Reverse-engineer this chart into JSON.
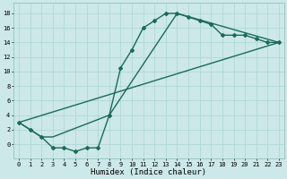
{
  "title": "",
  "xlabel": "Humidex (Indice chaleur)",
  "ylabel": "",
  "bg_color": "#cce8e8",
  "grid_color": "#aad4d4",
  "line_color": "#1a6b5a",
  "curve1_x": [
    0,
    1,
    2,
    3,
    4,
    5,
    6,
    7,
    8,
    9,
    10,
    11,
    12,
    13,
    14,
    15,
    16,
    17,
    18,
    19,
    20,
    21,
    22,
    23
  ],
  "curve1_y": [
    3,
    2,
    1,
    -0.5,
    -0.5,
    -1,
    -0.5,
    -0.5,
    4,
    10.5,
    13,
    16,
    17,
    18,
    18,
    17.5,
    17,
    16.5,
    15,
    15,
    15,
    14.5,
    14,
    14
  ],
  "curve2_x": [
    0,
    2,
    3,
    8,
    14,
    23
  ],
  "curve2_y": [
    3,
    1,
    1,
    4,
    18,
    14
  ],
  "curve3_x": [
    0,
    23
  ],
  "curve3_y": [
    3,
    14
  ],
  "xlim": [
    -0.5,
    23.5
  ],
  "ylim": [
    -2,
    19.5
  ],
  "xtick_vals": [
    0,
    1,
    2,
    3,
    4,
    5,
    6,
    7,
    8,
    9,
    10,
    11,
    12,
    13,
    14,
    15,
    16,
    17,
    18,
    19,
    20,
    21,
    22,
    23
  ],
  "xtick_labels": [
    "0",
    "1",
    "2",
    "3",
    "4",
    "5",
    "6",
    "7",
    "8",
    "9",
    "10",
    "11",
    "12",
    "13",
    "14",
    "15",
    "16",
    "17",
    "18",
    "19",
    "20",
    "21",
    "22",
    "23"
  ],
  "ytick_vals": [
    0,
    2,
    4,
    6,
    8,
    10,
    12,
    14,
    16,
    18
  ],
  "ytick_labels": [
    "0",
    "2",
    "4",
    "6",
    "8",
    "10",
    "12",
    "14",
    "16",
    "18"
  ],
  "tick_fontsize": 5.0,
  "xlabel_fontsize": 6.5,
  "marker": "D",
  "markersize": 2.0,
  "linewidth": 1.0
}
